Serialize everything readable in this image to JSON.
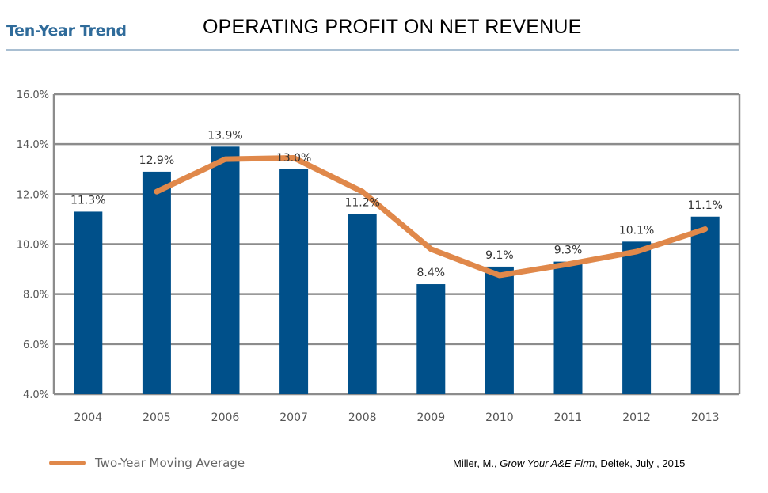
{
  "header": {
    "brand": "Ten-Year Trend",
    "title": "OPERATING PROFIT ON NET REVENUE"
  },
  "citation": {
    "author": "Miller, M., ",
    "work": "Grow Your A&E Firm",
    "publisher": ", Deltek, July , 2015"
  },
  "colors": {
    "bar": "#00508a",
    "line": "#e0884a",
    "grid": "#8c8c8c",
    "brand": "#2f6b9a"
  },
  "chart_data": {
    "type": "bar",
    "categories": [
      "2004",
      "2005",
      "2006",
      "2007",
      "2008",
      "2009",
      "2010",
      "2011",
      "2012",
      "2013"
    ],
    "values": [
      11.3,
      12.9,
      13.9,
      13.0,
      11.2,
      8.4,
      9.1,
      9.3,
      10.1,
      11.1
    ],
    "data_labels": [
      "11.3%",
      "12.9%",
      "13.9%",
      "13.0%",
      "11.2%",
      "8.4%",
      "9.1%",
      "9.3%",
      "10.1%",
      "11.1%"
    ],
    "ylim": [
      4,
      16
    ],
    "yticks": [
      4,
      6,
      8,
      10,
      12,
      14,
      16
    ],
    "ytick_labels": [
      "4.0%",
      "6.0%",
      "8.0%",
      "10.0%",
      "12.0%",
      "14.0%",
      "16.0%"
    ],
    "grid": true,
    "series": [
      {
        "name": "Two-Year Moving Average",
        "type": "line",
        "x": [
          "2005",
          "2006",
          "2007",
          "2008",
          "2009",
          "2010",
          "2011",
          "2012",
          "2013"
        ],
        "values": [
          12.1,
          13.4,
          13.45,
          12.1,
          9.8,
          8.75,
          9.2,
          9.7,
          10.6
        ]
      }
    ],
    "legend": "bottom-left"
  }
}
